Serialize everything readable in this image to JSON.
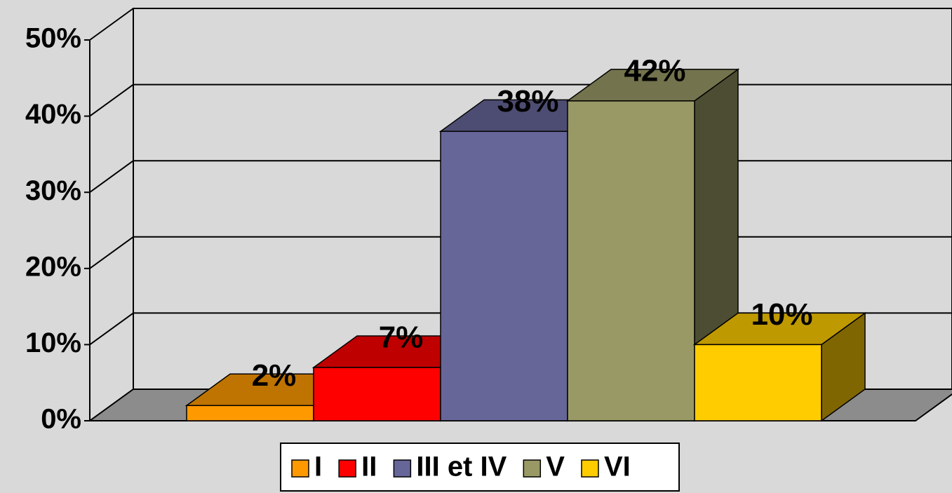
{
  "chart_data": {
    "type": "bar3d",
    "series": [
      {
        "name": "I",
        "color": "#ff9900",
        "values": [
          2
        ],
        "value_labels": [
          "2%"
        ]
      },
      {
        "name": "II",
        "color": "#ff0000",
        "values": [
          7
        ],
        "value_labels": [
          "7%"
        ]
      },
      {
        "name": "III et IV",
        "color": "#666699",
        "values": [
          38
        ],
        "value_labels": [
          "38%"
        ]
      },
      {
        "name": "V",
        "color": "#999966",
        "values": [
          42
        ],
        "value_labels": [
          "42%"
        ]
      },
      {
        "name": "VI",
        "color": "#ffcc00",
        "values": [
          10
        ],
        "value_labels": [
          "10%"
        ]
      }
    ],
    "ylim": [
      0,
      50
    ],
    "yticks": [
      {
        "value": 0,
        "label": "0%"
      },
      {
        "value": 10,
        "label": "10%"
      },
      {
        "value": 20,
        "label": "20%"
      },
      {
        "value": 30,
        "label": "30%"
      },
      {
        "value": 40,
        "label": "40%"
      },
      {
        "value": 50,
        "label": "50%"
      }
    ],
    "grid": true,
    "legend": "bottom"
  }
}
